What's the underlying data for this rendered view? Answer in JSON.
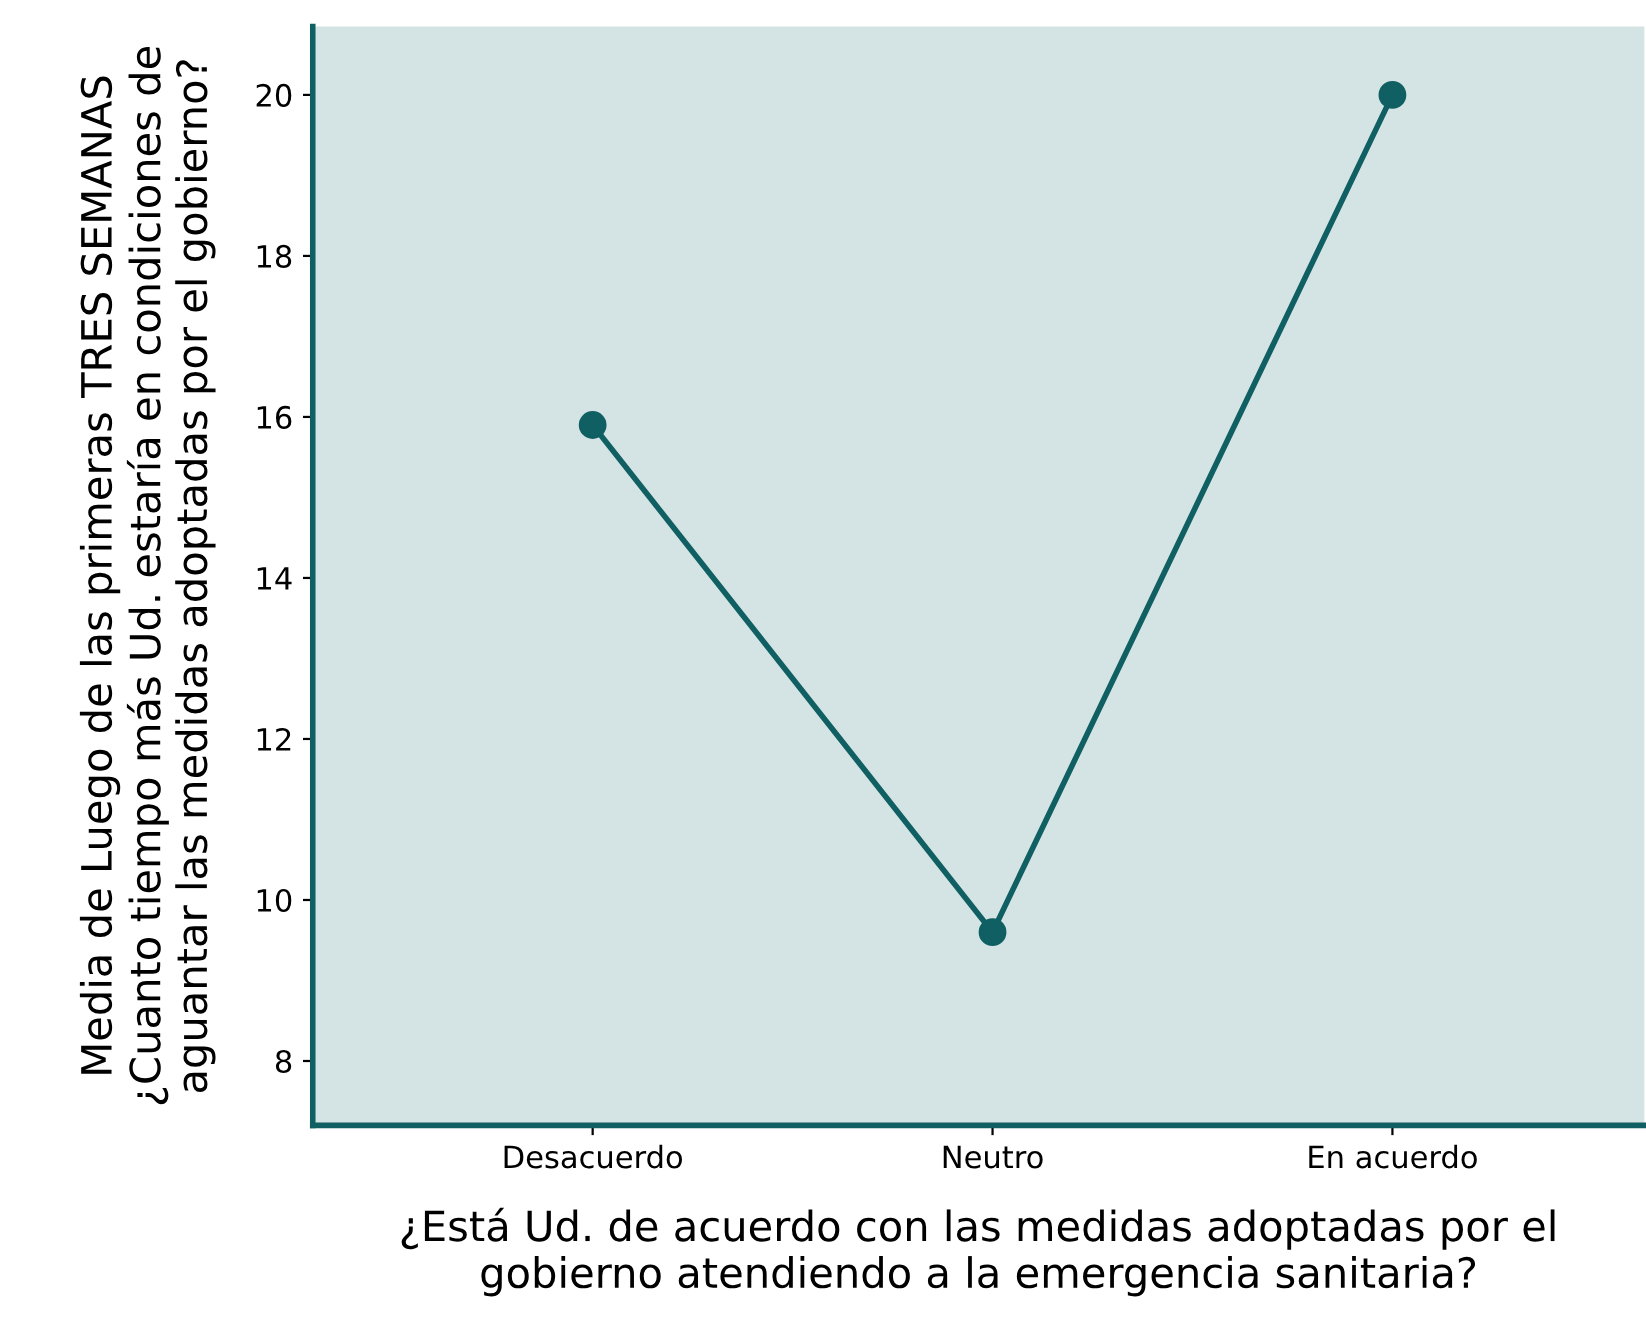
{
  "chart_data": {
    "type": "line",
    "xlabel": "¿Está Ud. de acuerdo con las medidas adoptadas por el\ngobierno atendiendo a la emergencia sanitaria?",
    "ylabel": "Media de Luego de las primeras TRES SEMANAS\n¿Cuanto tiempo más Ud. estaría en condiciones de\naguantar las medidas adoptadas por el gobierno?",
    "categories": [
      "Desacuerdo",
      "Neutro",
      "En acuerdo"
    ],
    "series": [
      {
        "color": "#0f5f63",
        "values": [
          15.9,
          9.6,
          20.0
        ]
      }
    ],
    "ylim": [
      7.2,
      20.85
    ],
    "yticks": [
      8,
      10,
      12,
      14,
      16,
      18,
      20
    ],
    "marker": "circle",
    "line_style": "solid",
    "grid": false,
    "legend": false
  }
}
